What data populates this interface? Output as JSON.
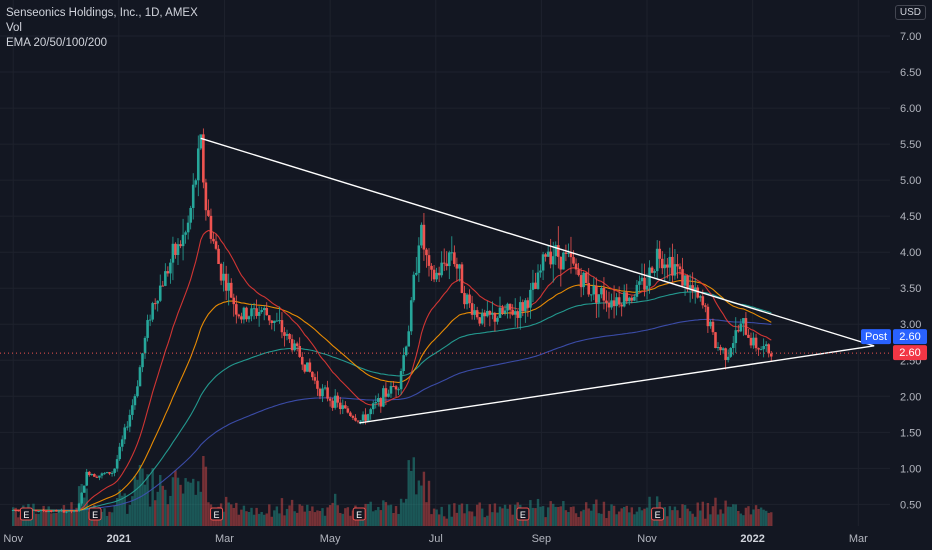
{
  "legend": {
    "title": "Senseonics Holdings, Inc., 1D, AMEX",
    "vol": "Vol",
    "ema": "EMA 20/50/100/200"
  },
  "currency": "USD",
  "price_tags": {
    "post_label": "Post",
    "post_value": "2.60",
    "last_value": "2.60",
    "post_color": "#2962ff",
    "last_color": "#f23645"
  },
  "colors": {
    "background": "#131722",
    "up": "#26a69a",
    "down": "#ef5350",
    "ema20": "#e53935",
    "ema50": "#ff9800",
    "ema100": "#26a69a",
    "ema200": "#3f51b5",
    "trendline": "#ffffff",
    "earnings_marker": "#ef5350",
    "dividend_marker": "#26a69a"
  },
  "chart_data": {
    "type": "candlestick",
    "ylim": [
      0.2,
      7.5
    ],
    "ytick_labels": [
      "0.50",
      "1.00",
      "1.50",
      "2.00",
      "2.50",
      "3.00",
      "3.50",
      "4.00",
      "4.50",
      "5.00",
      "5.50",
      "6.00",
      "6.50",
      "7.00"
    ],
    "yticks": [
      0.5,
      1.0,
      1.5,
      2.0,
      2.5,
      3.0,
      3.5,
      4.0,
      4.5,
      5.0,
      5.5,
      6.0,
      6.5,
      7.0
    ],
    "xticks": [
      {
        "label": "Nov",
        "month": 0,
        "bold": false
      },
      {
        "label": "2021",
        "month": 2,
        "bold": true
      },
      {
        "label": "Mar",
        "month": 4,
        "bold": false
      },
      {
        "label": "May",
        "month": 6,
        "bold": false
      },
      {
        "label": "Jul",
        "month": 8,
        "bold": false
      },
      {
        "label": "Sep",
        "month": 10,
        "bold": false
      },
      {
        "label": "Nov",
        "month": 12,
        "bold": false
      },
      {
        "label": "2022",
        "month": 14,
        "bold": true
      },
      {
        "label": "Mar",
        "month": 16,
        "bold": false
      }
    ],
    "xlim_months": [
      -0.25,
      16.6
    ],
    "x_unit": "months since Nov 1, 2020",
    "price_path": [
      [
        0.0,
        0.42
      ],
      [
        1.2,
        0.4
      ],
      [
        1.3,
        0.65
      ],
      [
        1.4,
        0.95
      ],
      [
        1.6,
        0.9
      ],
      [
        1.9,
        0.95
      ],
      [
        2.3,
        2.0
      ],
      [
        2.6,
        3.2
      ],
      [
        3.0,
        3.9
      ],
      [
        3.3,
        4.3
      ],
      [
        3.55,
        5.5
      ],
      [
        3.65,
        4.6
      ],
      [
        3.9,
        3.8
      ],
      [
        4.3,
        3.1
      ],
      [
        4.7,
        3.2
      ],
      [
        5.0,
        3.0
      ],
      [
        5.4,
        2.6
      ],
      [
        5.8,
        2.1
      ],
      [
        6.2,
        1.85
      ],
      [
        6.6,
        1.65
      ],
      [
        7.0,
        2.0
      ],
      [
        7.3,
        2.2
      ],
      [
        7.5,
        3.0
      ],
      [
        7.7,
        4.35
      ],
      [
        7.9,
        3.6
      ],
      [
        8.1,
        3.75
      ],
      [
        8.3,
        4.05
      ],
      [
        8.6,
        3.3
      ],
      [
        8.9,
        3.05
      ],
      [
        9.3,
        3.15
      ],
      [
        9.6,
        3.2
      ],
      [
        9.9,
        3.5
      ],
      [
        10.1,
        4.05
      ],
      [
        10.5,
        3.9
      ],
      [
        10.9,
        3.5
      ],
      [
        11.3,
        3.35
      ],
      [
        11.7,
        3.4
      ],
      [
        12.0,
        3.6
      ],
      [
        12.2,
        4.0
      ],
      [
        12.5,
        3.85
      ],
      [
        12.8,
        3.5
      ],
      [
        13.1,
        3.2
      ],
      [
        13.3,
        2.7
      ],
      [
        13.5,
        2.6
      ],
      [
        13.8,
        3.0
      ],
      [
        14.0,
        2.75
      ],
      [
        14.2,
        2.65
      ],
      [
        14.4,
        2.6
      ]
    ],
    "trendlines": [
      {
        "name": "upper",
        "from": [
          3.55,
          5.58
        ],
        "to": [
          16.3,
          2.7
        ]
      },
      {
        "name": "lower",
        "from": [
          6.55,
          1.63
        ],
        "to": [
          16.3,
          2.7
        ]
      }
    ],
    "horizontal_line": 2.6,
    "last_price": 2.6,
    "event_markers": [
      {
        "type": "E",
        "month": 0.25
      },
      {
        "type": "E",
        "month": 1.55
      },
      {
        "type": "E",
        "month": 3.85
      },
      {
        "type": "E",
        "month": 6.55
      },
      {
        "type": "E",
        "month": 9.65
      },
      {
        "type": "E",
        "month": 12.2
      }
    ]
  }
}
